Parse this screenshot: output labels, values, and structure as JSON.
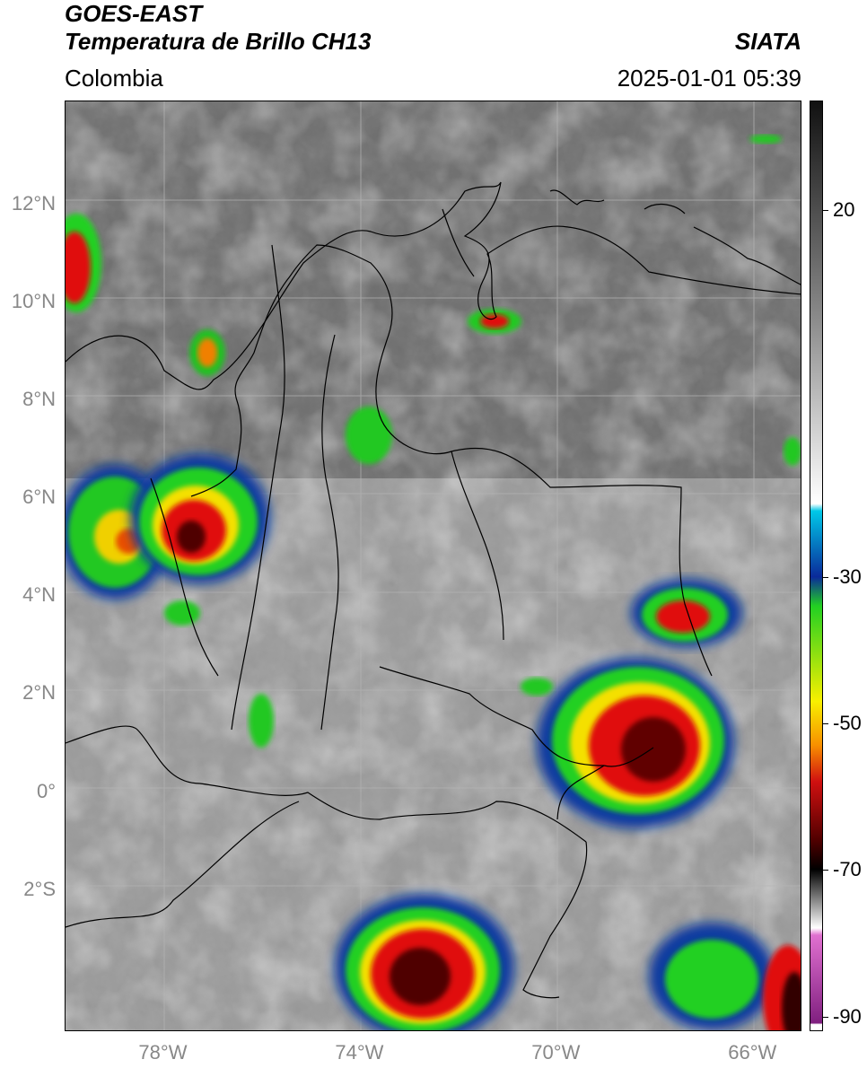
{
  "header": {
    "satellite": "GOES-EAST",
    "product": "Temperatura de Brillo CH13",
    "region": "Colombia",
    "org": "SIATA",
    "datetime": "2025-01-01 05:39"
  },
  "map": {
    "lon_range": [
      -80.0,
      -65.0
    ],
    "lat_range": [
      -4.9,
      14.1
    ],
    "lon_ticks": [
      {
        "lon": -78,
        "label": "78°W"
      },
      {
        "lon": -74,
        "label": "74°W"
      },
      {
        "lon": -70,
        "label": "70°W"
      },
      {
        "lon": -66,
        "label": "66°W"
      }
    ],
    "lat_ticks": [
      {
        "lat": 12,
        "label": "12°N"
      },
      {
        "lat": 10,
        "label": "10°N"
      },
      {
        "lat": 8,
        "label": "8°N"
      },
      {
        "lat": 6,
        "label": "6°N"
      },
      {
        "lat": 4,
        "label": "4°N"
      },
      {
        "lat": 2,
        "label": "2°N"
      },
      {
        "lat": 0,
        "label": "0°"
      },
      {
        "lat": -2,
        "label": "2°S"
      }
    ],
    "gridlines": true
  },
  "colorbar": {
    "range": [
      -92,
      35
    ],
    "ticks": [
      {
        "value": 20,
        "label": "20"
      },
      {
        "value": -30,
        "label": "-30"
      },
      {
        "value": -50,
        "label": "-50"
      },
      {
        "value": -70,
        "label": "-70"
      },
      {
        "value": -90,
        "label": "-90"
      }
    ],
    "colors": {
      "warm_top": "#111111",
      "grey_mid": "#8c8c8c",
      "white": "#ffffff",
      "cyan": "#00c8e8",
      "blue": "#0a2a9a",
      "green": "#22d022",
      "yellow": "#f8f000",
      "orange": "#f89000",
      "red": "#d01010",
      "darkred": "#500000",
      "black": "#000000",
      "pink": "#e070d0",
      "purple": "#802080"
    }
  }
}
